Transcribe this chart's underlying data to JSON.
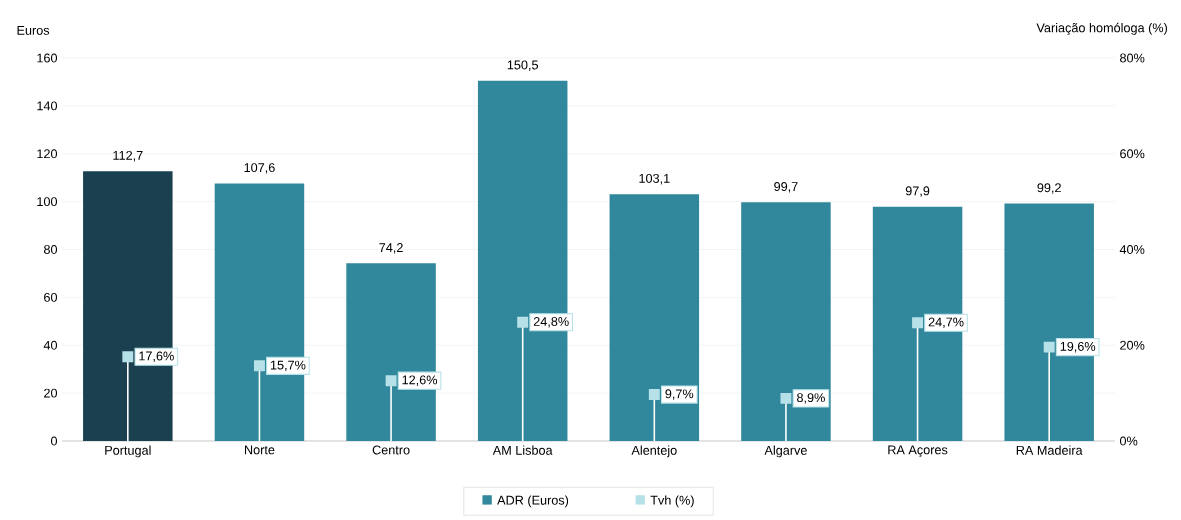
{
  "chart_data": {
    "type": "bar",
    "ylabel": "Euros",
    "y2label": "Variação homóloga (%)",
    "categories": [
      "Portugal",
      "Norte",
      "Centro",
      "AM Lisboa",
      "Alentejo",
      "Algarve",
      "RA Açores",
      "RA Madeira"
    ],
    "series": [
      {
        "name": "ADR (Euros)",
        "color": "#31879b",
        "colors": [
          "#1b4150",
          "#31879b",
          "#31879b",
          "#31879b",
          "#31879b",
          "#31879b",
          "#31879b",
          "#31879b"
        ],
        "values": [
          112.7,
          107.6,
          74.2,
          150.5,
          103.1,
          99.7,
          97.9,
          99.2
        ],
        "value_labels": [
          "112,7",
          "107,6",
          "74,2",
          "150,5",
          "103,1",
          "99,7",
          "97,9",
          "99,2"
        ]
      },
      {
        "name": "Tvh (%)",
        "type": "lollipop",
        "axis": "y2",
        "color": "#b7e1e8",
        "values": [
          17.6,
          15.7,
          12.6,
          24.8,
          9.7,
          8.9,
          24.7,
          19.6
        ],
        "value_labels": [
          "17,6%",
          "15,7%",
          "12,6%",
          "24,8%",
          "9,7%",
          "8,9%",
          "24,7%",
          "19,6%"
        ]
      }
    ],
    "ylim": [
      0,
      160
    ],
    "yticks": [
      0,
      20,
      40,
      60,
      80,
      100,
      120,
      140,
      160
    ],
    "y2lim": [
      0,
      80
    ],
    "y2ticks": [
      {
        "value": 0,
        "label": "0%"
      },
      {
        "value": 20,
        "label": "20%"
      },
      {
        "value": 40,
        "label": "40%"
      },
      {
        "value": 60,
        "label": "60%"
      },
      {
        "value": 80,
        "label": "80%"
      }
    ],
    "grid": "y",
    "legend": "bottom",
    "marker": "square"
  }
}
